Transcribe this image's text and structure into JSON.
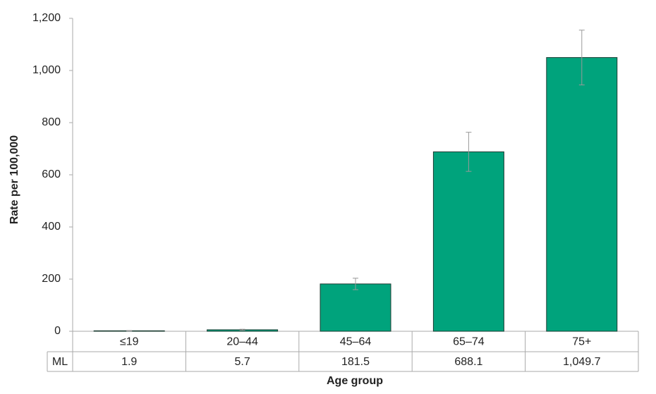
{
  "chart_data": {
    "type": "bar",
    "x_label": "Age group",
    "y_label": "Rate per 100,000",
    "categories": [
      "≤19",
      "20–44",
      "45–64",
      "65–74",
      "75+"
    ],
    "series": [
      {
        "name": "ML",
        "color": "#00a37c",
        "values": [
          1.9,
          5.7,
          181.5,
          688.1,
          1049.7
        ],
        "value_labels": [
          "1.9",
          "5.7",
          "181.5",
          "688.1",
          "1,049.7"
        ],
        "errors": [
          1,
          2,
          22,
          75,
          105
        ]
      }
    ],
    "ylim": [
      0,
      1200
    ],
    "yticks": [
      0,
      200,
      400,
      600,
      800,
      {
        "value": 1000,
        "label": "1,000"
      },
      {
        "value": 1200,
        "label": "1,200"
      }
    ],
    "grid": false
  }
}
